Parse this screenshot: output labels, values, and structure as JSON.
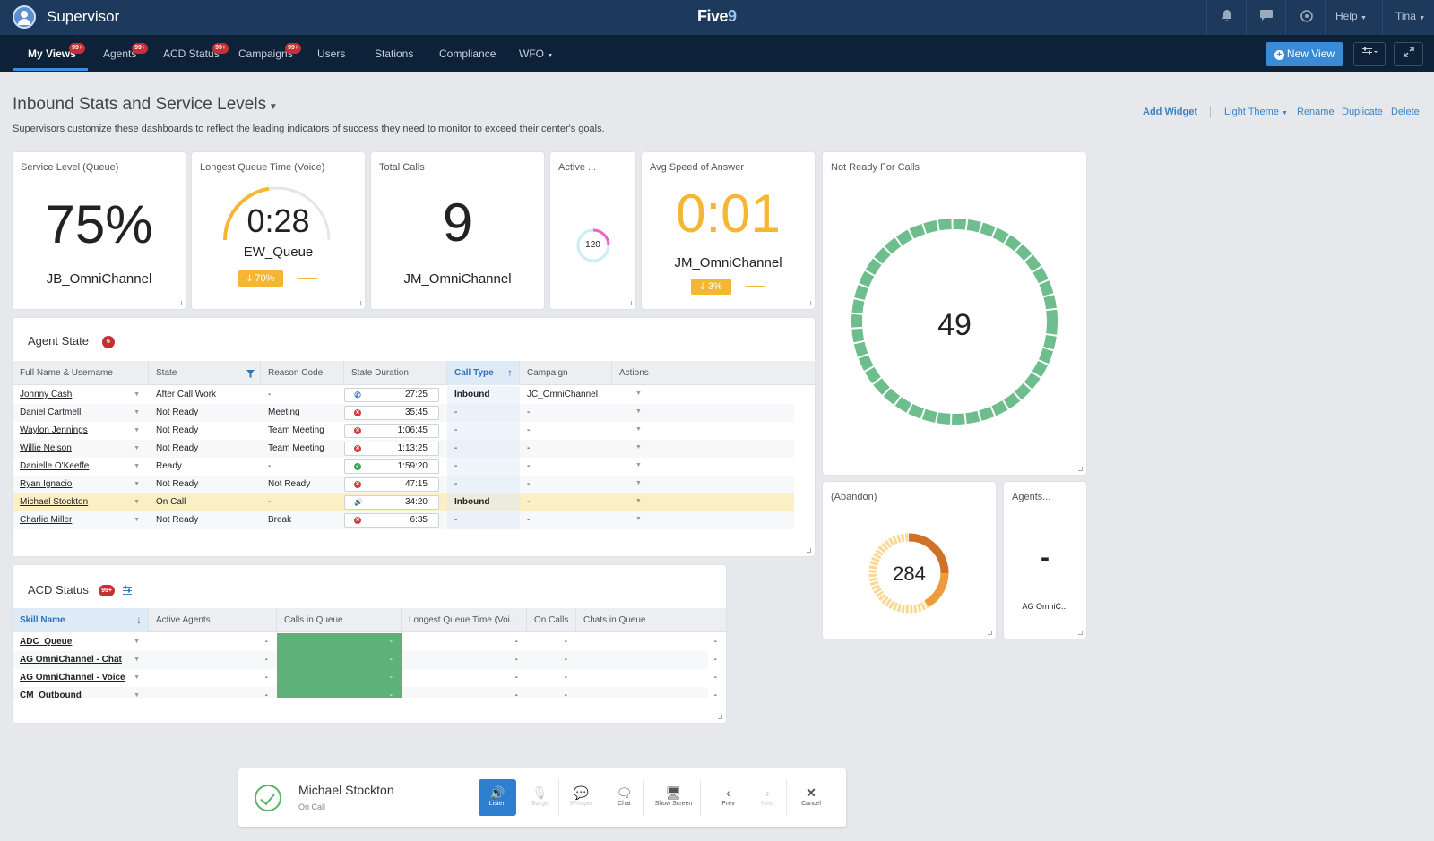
{
  "topbar": {
    "app_title": "Supervisor",
    "logo_text": "Five",
    "logo_suffix": "9",
    "help": "Help",
    "user": "Tina",
    "icons": [
      "bell-icon",
      "chat-bubble-icon",
      "headset-icon"
    ]
  },
  "nav": {
    "items": [
      {
        "label": "My Views",
        "badge": "99+"
      },
      {
        "label": "Agents",
        "badge": "99+"
      },
      {
        "label": "ACD Status",
        "badge": "99+"
      },
      {
        "label": "Campaigns",
        "badge": "99+"
      },
      {
        "label": "Users"
      },
      {
        "label": "Stations"
      },
      {
        "label": "Compliance"
      },
      {
        "label": "WFO"
      }
    ],
    "new_view": "New View"
  },
  "page": {
    "title": "Inbound Stats and Service Levels",
    "description": "Supervisors customize these dashboards to reflect the leading indicators of success they need to monitor to exceed their center's goals.",
    "actions": {
      "add_widget": "Add Widget",
      "theme": "Light Theme",
      "rename": "Rename",
      "duplicate": "Duplicate",
      "delete": "Delete"
    }
  },
  "widgets": {
    "service_level": {
      "title": "Service Level (Queue)",
      "value": "75%",
      "label": "JB_OmniChannel"
    },
    "longest_queue": {
      "title": "Longest Queue Time (Voice)",
      "value": "0:28",
      "label": "EW_Queue",
      "trend": "70%",
      "gauge_fraction": 0.45
    },
    "total_calls": {
      "title": "Total Calls",
      "value": "9",
      "label": "JM_OmniChannel"
    },
    "active": {
      "title": "Active ...",
      "value": "120"
    },
    "avg_speed": {
      "title": "Avg Speed of Answer",
      "value": "0:01",
      "label": "JM_OmniChannel",
      "trend": "3%"
    },
    "not_ready": {
      "title": "Not Ready For Calls",
      "value": "49"
    },
    "abandon": {
      "title": "(Abandon)",
      "value": "284"
    },
    "agents": {
      "title": "Agents...",
      "value": "-",
      "label": "AG OmniC..."
    }
  },
  "agent_state": {
    "title": "Agent State",
    "badge": "6",
    "columns": [
      "Full Name & Username",
      "State",
      "Reason Code",
      "State Duration",
      "Call Type",
      "Campaign",
      "Actions"
    ],
    "rows": [
      {
        "name": "Johnny Cash",
        "state": "After Call Work",
        "reason": "-",
        "icon": "phone",
        "duration": "27:25",
        "call_type": "Inbound",
        "campaign": "JC_OmniChannel"
      },
      {
        "name": "Daniel Cartmell",
        "state": "Not Ready",
        "reason": "Meeting",
        "icon": "red",
        "duration": "35:45",
        "call_type": "-",
        "campaign": "-"
      },
      {
        "name": "Waylon Jennings",
        "state": "Not Ready",
        "reason": "Team Meeting",
        "icon": "red",
        "duration": "1:06:45",
        "call_type": "-",
        "campaign": "-"
      },
      {
        "name": "Willie Nelson",
        "state": "Not Ready",
        "reason": "Team Meeting",
        "icon": "red",
        "duration": "1:13:25",
        "call_type": "-",
        "campaign": "-"
      },
      {
        "name": "Danielle O'Keeffe",
        "state": "Ready",
        "reason": "-",
        "icon": "green",
        "duration": "1:59:20",
        "call_type": "-",
        "campaign": "-"
      },
      {
        "name": "Ryan Ignacio",
        "state": "Not Ready",
        "reason": "Not Ready",
        "icon": "red",
        "duration": "47:15",
        "call_type": "-",
        "campaign": "-"
      },
      {
        "name": "Michael Stockton",
        "state": "On Call",
        "reason": "-",
        "icon": "volume",
        "duration": "34:20",
        "call_type": "Inbound",
        "campaign": "-"
      },
      {
        "name": "Charlie Miller",
        "state": "Not Ready",
        "reason": "Break",
        "icon": "red",
        "duration": "6:35",
        "call_type": "-",
        "campaign": "-"
      }
    ]
  },
  "acd_status": {
    "title": "ACD Status",
    "badge": "99+",
    "columns": [
      "Skill Name",
      "Active Agents",
      "Calls in Queue",
      "Longest Queue Time (Voi...",
      "On Calls",
      "Chats in Queue"
    ],
    "rows": [
      {
        "skill": "ADC_Queue",
        "cells": [
          "-",
          "-",
          "-",
          "-",
          "-"
        ]
      },
      {
        "skill": "AG OmniChannel - Chat",
        "cells": [
          "-",
          "-",
          "-",
          "-",
          "-"
        ]
      },
      {
        "skill": "AG OmniChannel - Voice",
        "cells": [
          "-",
          "-",
          "-",
          "-",
          "-"
        ]
      },
      {
        "skill": "CM_Outbound",
        "cells": [
          "-",
          "-",
          "-",
          "-",
          "-"
        ]
      }
    ],
    "highlight_color": "#5fb17a"
  },
  "callbar": {
    "name": "Michael Stockton",
    "state": "On Call",
    "buttons": [
      {
        "label": "Listen",
        "icon": "speaker-icon"
      },
      {
        "label": "Barge",
        "icon": "microphone-icon"
      },
      {
        "label": "Whisper",
        "icon": "whisper-bubble-icon"
      },
      {
        "label": "Chat",
        "icon": "chat-icon"
      },
      {
        "label": "Show Screen",
        "icon": "monitor-icon"
      },
      {
        "label": "Prev",
        "icon": "chevron-left-icon"
      },
      {
        "label": "Next",
        "icon": "chevron-right-icon"
      },
      {
        "label": "Cancel",
        "icon": "close-icon"
      }
    ]
  },
  "colors": {
    "topbar": "#1d3a5c",
    "navbar": "#0d2138",
    "accent": "#3b8ad6",
    "amber": "#f5b633",
    "green": "#5fb17a",
    "orange": "#e0912a",
    "badge": "#c62f34"
  }
}
